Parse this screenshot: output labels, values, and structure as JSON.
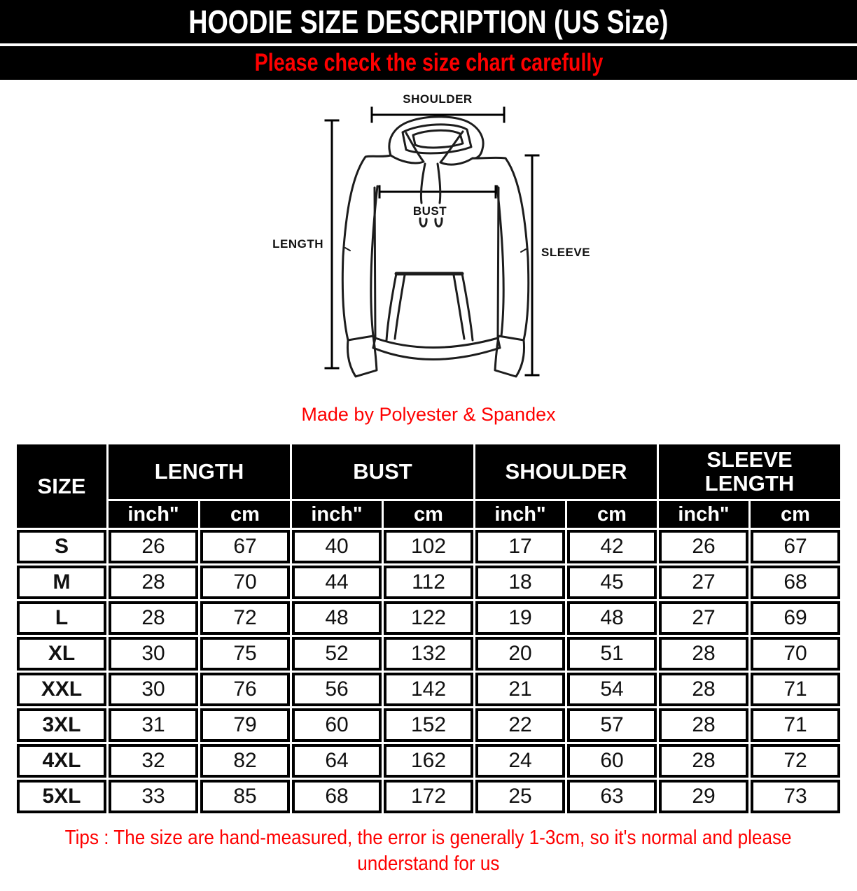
{
  "header": {
    "title": "HOODIE SIZE DESCRIPTION (US Size)",
    "subtitle": "Please check the size chart carefully"
  },
  "diagram": {
    "shoulder_label": "SHOULDER",
    "bust_label": "BUST",
    "length_label": "LENGTH",
    "sleeve_label": "SLEEVE",
    "material_note": "Made by Polyester & Spandex"
  },
  "size_table": {
    "corner_header": "SIZE",
    "measure_headers": [
      "LENGTH",
      "BUST",
      "SHOULDER",
      "SLEEVE LENGTH"
    ],
    "unit_headers": [
      "inch\"",
      "cm"
    ],
    "rows": [
      {
        "size": "S",
        "values": [
          "26",
          "67",
          "40",
          "102",
          "17",
          "42",
          "26",
          "67"
        ]
      },
      {
        "size": "M",
        "values": [
          "28",
          "70",
          "44",
          "112",
          "18",
          "45",
          "27",
          "68"
        ]
      },
      {
        "size": "L",
        "values": [
          "28",
          "72",
          "48",
          "122",
          "19",
          "48",
          "27",
          "69"
        ]
      },
      {
        "size": "XL",
        "values": [
          "30",
          "75",
          "52",
          "132",
          "20",
          "51",
          "28",
          "70"
        ]
      },
      {
        "size": "XXL",
        "values": [
          "30",
          "76",
          "56",
          "142",
          "21",
          "54",
          "28",
          "71"
        ]
      },
      {
        "size": "3XL",
        "values": [
          "31",
          "79",
          "60",
          "152",
          "22",
          "57",
          "28",
          "71"
        ]
      },
      {
        "size": "4XL",
        "values": [
          "32",
          "82",
          "64",
          "162",
          "24",
          "60",
          "28",
          "72"
        ]
      },
      {
        "size": "5XL",
        "values": [
          "33",
          "85",
          "68",
          "172",
          "25",
          "63",
          "29",
          "73"
        ]
      }
    ]
  },
  "tips": {
    "line1": "Tips : The size are hand-measured, the error is generally 1-3cm, so it's normal and please",
    "line2": "understand for us"
  },
  "colors": {
    "accent_red": "#fe0000",
    "banner_bg": "#000000",
    "banner_text": "#ffffff",
    "value_black": "#111111"
  }
}
